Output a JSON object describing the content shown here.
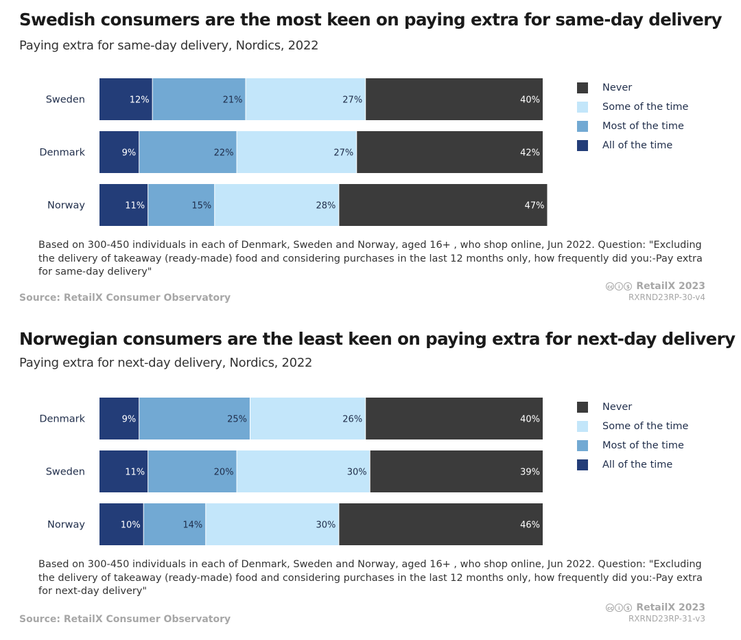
{
  "colors": {
    "all_of_the_time": "#233d78",
    "most_of_the_time": "#72a9d3",
    "some_of_the_time": "#c3e6fa",
    "never": "#3b3b3b",
    "country_label": "#1f2d4a"
  },
  "icons": [
    "cc-icon",
    "by-icon",
    "nc-icon"
  ],
  "chart_data": [
    {
      "type": "bar",
      "orientation": "horizontal",
      "stacked": true,
      "title": "Swedish consumers are the most keen on paying extra for same-day delivery",
      "subtitle": "Paying extra for same-day delivery, Nordics, 2022",
      "categories": [
        "Sweden",
        "Denmark",
        "Norway"
      ],
      "series": [
        {
          "key": "all_of_the_time",
          "name": "All of the time",
          "values": [
            12,
            9,
            11
          ]
        },
        {
          "key": "most_of_the_time",
          "name": "Most of the time",
          "values": [
            21,
            22,
            15
          ]
        },
        {
          "key": "some_of_the_time",
          "name": "Some of the time",
          "values": [
            27,
            27,
            28
          ]
        },
        {
          "key": "never",
          "name": "Never",
          "values": [
            40,
            42,
            47
          ]
        }
      ],
      "legend_order": [
        "Never",
        "Some of the time",
        "Most of the time",
        "All of the time"
      ],
      "legend_position": "right",
      "xlim": [
        0,
        100
      ],
      "grid": false,
      "note": "Based on 300-450 individuals in each of Denmark, Sweden and Norway, aged 16+ , who shop online, Jun 2022. Question: \"Excluding the delivery of takeaway (ready-made) food and considering purchases in the last 12 months only, how frequently did you:-Pay extra for same-day delivery\"",
      "source": "Source: RetailX Consumer Observatory",
      "brand": "RetailX 2023",
      "code": "RXRND23RP-30-v4"
    },
    {
      "type": "bar",
      "orientation": "horizontal",
      "stacked": true,
      "title": "Norwegian consumers are the least keen on paying extra for next-day delivery",
      "subtitle": "Paying extra for next-day delivery, Nordics, 2022",
      "categories": [
        "Denmark",
        "Sweden",
        "Norway"
      ],
      "series": [
        {
          "key": "all_of_the_time",
          "name": "All of the time",
          "values": [
            9,
            11,
            10
          ]
        },
        {
          "key": "most_of_the_time",
          "name": "Most of the time",
          "values": [
            25,
            20,
            14
          ]
        },
        {
          "key": "some_of_the_time",
          "name": "Some of the time",
          "values": [
            26,
            30,
            30
          ]
        },
        {
          "key": "never",
          "name": "Never",
          "values": [
            40,
            39,
            46
          ]
        }
      ],
      "legend_order": [
        "Never",
        "Some of the time",
        "Most of the time",
        "All of the time"
      ],
      "legend_position": "right",
      "xlim": [
        0,
        100
      ],
      "grid": false,
      "note": "Based on 300-450 individuals in each of Denmark, Sweden and Norway, aged 16+ , who shop online, Jun 2022. Question: \"Excluding the delivery of takeaway (ready-made) food and considering purchases in the last 12 months only, how frequently did you:-Pay extra for next-day delivery\"",
      "source": "Source: RetailX Consumer Observatory",
      "brand": "RetailX 2023",
      "code": "RXRND23RP-31-v3"
    }
  ]
}
